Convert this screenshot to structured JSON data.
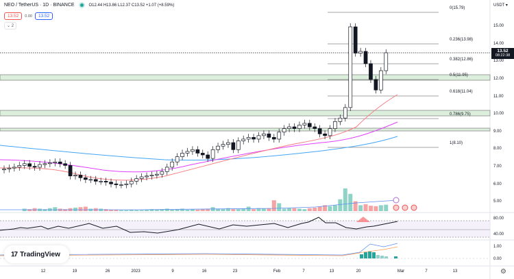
{
  "header": {
    "symbol": "NEO / TetherUS · 1D · BINANCE",
    "ohlc": "O12.44 H13.86 L12.37 C13.52 +1.07 (+8.59%)",
    "bid": "13.52",
    "spread": "0.00",
    "ask": "13.52",
    "indicators_collapsed": "⌄ 2"
  },
  "price_axis": {
    "currency": "USDT ▾",
    "current_price": "13.52",
    "countdown": "08:22:38",
    "ticks": [
      "15.00",
      "14.00",
      "13.00",
      "12.00",
      "11.00",
      "10.00",
      "9.00",
      "8.00",
      "7.00",
      "6.00",
      "5.00"
    ],
    "rsi_ticks": [
      "80.00",
      "40.00"
    ],
    "macd_ticks": [
      "1.00",
      "0.00"
    ]
  },
  "time_axis": {
    "ticks": [
      "12",
      "19",
      "26",
      "2023",
      "9",
      "16",
      "23",
      "Feb",
      "7",
      "13",
      "20",
      "Mar",
      "7",
      "13"
    ]
  },
  "logo": {
    "mark": "17",
    "text": "TradingView"
  },
  "chart_data": {
    "type": "candlestick",
    "title": "NEO / TetherUS · 1D · BINANCE",
    "ylabel": "USDT",
    "ylim": [
      4.5,
      16.2
    ],
    "fib_levels": [
      {
        "label": "0(15.79)",
        "value": 15.79
      },
      {
        "label": "0.236(13.98)",
        "value": 13.98
      },
      {
        "label": "0.382(12.86)",
        "value": 12.86
      },
      {
        "label": "0.5(11.95)",
        "value": 11.95
      },
      {
        "label": "0.618(11.04)",
        "value": 11.04
      },
      {
        "label": "0.786(9.75)",
        "value": 9.75
      },
      {
        "label": "1(8.10)",
        "value": 8.1
      }
    ],
    "zones": [
      [
        12.0,
        12.3
      ],
      [
        9.85,
        10.15
      ],
      [
        9.05,
        9.2
      ]
    ],
    "last_close": 13.52,
    "indicators": [
      "EMA (red)",
      "EMA (magenta)",
      "EMA (blue)",
      "Volume",
      "RSI",
      "MACD"
    ],
    "rsi_levels": [
      70,
      50,
      30
    ],
    "x_ticks": [
      "12",
      "19",
      "26",
      "2023",
      "9",
      "16",
      "23",
      "Feb",
      "7",
      "13",
      "20",
      "Mar",
      "7",
      "13"
    ]
  }
}
